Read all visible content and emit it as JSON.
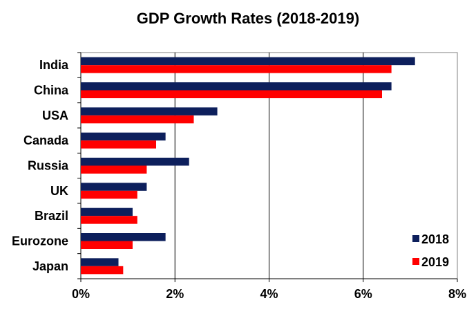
{
  "chart_data": {
    "type": "bar",
    "orientation": "horizontal",
    "title": "GDP Growth Rates (2018-2019)",
    "xlabel": "",
    "ylabel": "",
    "categories": [
      "India",
      "China",
      "USA",
      "Canada",
      "Russia",
      "UK",
      "Brazil",
      "Eurozone",
      "Japan"
    ],
    "series": [
      {
        "name": "2018",
        "color": "#0d1f5c",
        "values": [
          7.1,
          6.6,
          2.9,
          1.8,
          2.3,
          1.4,
          1.1,
          1.8,
          0.8
        ]
      },
      {
        "name": "2019",
        "color": "#ff0000",
        "values": [
          6.6,
          6.4,
          2.4,
          1.6,
          1.4,
          1.2,
          1.2,
          1.1,
          0.9
        ]
      }
    ],
    "xlim": [
      0,
      8
    ],
    "xticks": [
      0,
      2,
      4,
      6,
      8
    ],
    "tick_labels": [
      "0%",
      "2%",
      "4%",
      "6%",
      "8%"
    ],
    "grid": "vertical",
    "legend_position": "bottom-right"
  }
}
